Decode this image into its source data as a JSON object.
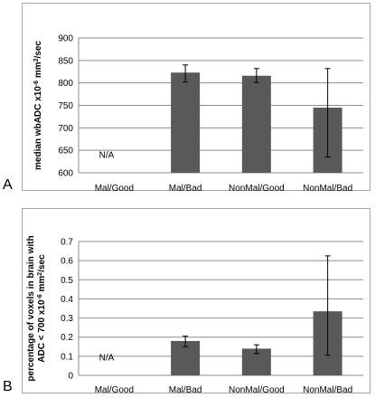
{
  "chart_data": [
    {
      "panel": "A",
      "type": "bar",
      "categories": [
        "Mal/Good",
        "Mal/Bad",
        "NonMal/Good",
        "NonMal/Bad"
      ],
      "values": [
        null,
        823,
        816,
        745
      ],
      "error_low": [
        null,
        802,
        801,
        635
      ],
      "error_high": [
        null,
        840,
        832,
        832
      ],
      "yticks": [
        "600",
        "650",
        "700",
        "750",
        "800",
        "850",
        "900"
      ],
      "ylim": [
        600,
        900
      ],
      "ylabel_main": "median wbADC x10",
      "ylabel_sup": "-6",
      "ylabel_unit": " mm",
      "ylabel_sup2": "2",
      "ylabel_tail": "/sec",
      "annotation": "N/A",
      "grid": true,
      "bar_color": "#595959"
    },
    {
      "panel": "B",
      "type": "bar",
      "categories": [
        "Mal/Good",
        "Mal/Bad",
        "NonMal/Good",
        "NonMal/Bad"
      ],
      "values": [
        null,
        0.18,
        0.14,
        0.335
      ],
      "error_low": [
        null,
        0.15,
        0.115,
        0.105
      ],
      "error_high": [
        null,
        0.205,
        0.16,
        0.625
      ],
      "yticks": [
        "0",
        "0.1",
        "0.2",
        "0.3",
        "0.4",
        "0.5",
        "0.6",
        "0.7"
      ],
      "ylim": [
        0,
        0.7
      ],
      "ylabel_line1": "percentage of voxels in brain with",
      "ylabel_main": "ADC < 700 x10",
      "ylabel_sup": "-6",
      "ylabel_unit": " mm",
      "ylabel_sup2": "2",
      "ylabel_tail": "/sec",
      "annotation": "N/A",
      "grid": true,
      "bar_color": "#595959"
    }
  ],
  "panel_letters": {
    "a": "A",
    "b": "B"
  }
}
